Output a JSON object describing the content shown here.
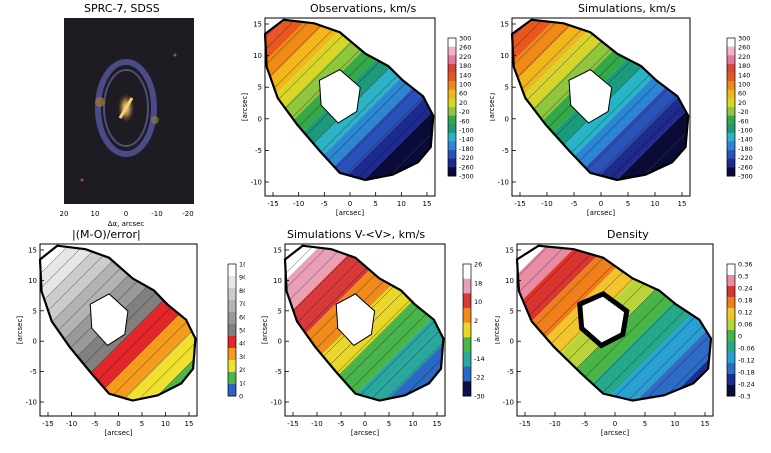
{
  "figure": {
    "sdss_panel": {
      "title": "SPRC-7, SDSS",
      "xlabel": "Δα, arcsec",
      "xticks": [
        "20",
        "10",
        "0",
        "-10",
        "-20"
      ]
    },
    "panels": [
      {
        "id": "observations",
        "title": "Observations, km/s",
        "colorbar": "velocity",
        "xticks": [
          "-15",
          "-10",
          "-5",
          "0",
          "5",
          "10",
          "15"
        ],
        "yticks": [
          "15",
          "10",
          "5",
          "0",
          "-5",
          "-10"
        ],
        "xlabel": "[arcsec]",
        "ylabel": "[arcsec]"
      },
      {
        "id": "simulations",
        "title": "Simulations, km/s",
        "colorbar": "velocity",
        "xticks": [
          "-15",
          "-10",
          "-5",
          "0",
          "5",
          "10",
          "15"
        ],
        "yticks": [
          "15",
          "10",
          "5",
          "0",
          "-5",
          "-10"
        ],
        "xlabel": "[arcsec]",
        "ylabel": "[arcsec]"
      },
      {
        "id": "error",
        "title": "|(M-O)/error|",
        "colorbar": "error",
        "xticks": [
          "-15",
          "-10",
          "-5",
          "0",
          "5",
          "10",
          "15"
        ],
        "yticks": [
          "15",
          "10",
          "5",
          "0",
          "-5",
          "-10"
        ],
        "xlabel": "[arcsec]",
        "ylabel": "[arcsec]"
      },
      {
        "id": "residual",
        "title": "Simulations V-<V>, km/s",
        "colorbar": "residual",
        "xticks": [
          "-15",
          "-10",
          "-5",
          "0",
          "5",
          "10",
          "15"
        ],
        "yticks": [
          "15",
          "10",
          "5",
          "0",
          "-5",
          "-10"
        ],
        "xlabel": "[arcsec]",
        "ylabel": "[arcsec]"
      },
      {
        "id": "density",
        "title": "Density",
        "colorbar": "density",
        "xticks": [
          "-15",
          "-10",
          "-5",
          "0",
          "5",
          "10",
          "15"
        ],
        "yticks": [
          "15",
          "10",
          "5",
          "0",
          "-5",
          "-10"
        ],
        "xlabel": "[arcsec]",
        "ylabel": "[arcsec]"
      }
    ],
    "colorbars": {
      "velocity": [
        "300",
        "260",
        "220",
        "180",
        "140",
        "100",
        "60",
        "20",
        "-20",
        "-60",
        "-100",
        "-140",
        "-180",
        "-220",
        "-260",
        "-300"
      ],
      "error": [
        "100",
        "90",
        "80",
        "70",
        "60",
        "50",
        "40",
        "30",
        "20",
        "10",
        "0"
      ],
      "residual": [
        "26",
        "18",
        "10",
        "2",
        "-6",
        "-14",
        "-22",
        "-30"
      ],
      "density": [
        "0.36",
        "0.3",
        "0.24",
        "0.18",
        "0.12",
        "0.06",
        "0",
        "-0.06",
        "-0.12",
        "-0.18",
        "-0.24",
        "-0.3"
      ]
    }
  }
}
